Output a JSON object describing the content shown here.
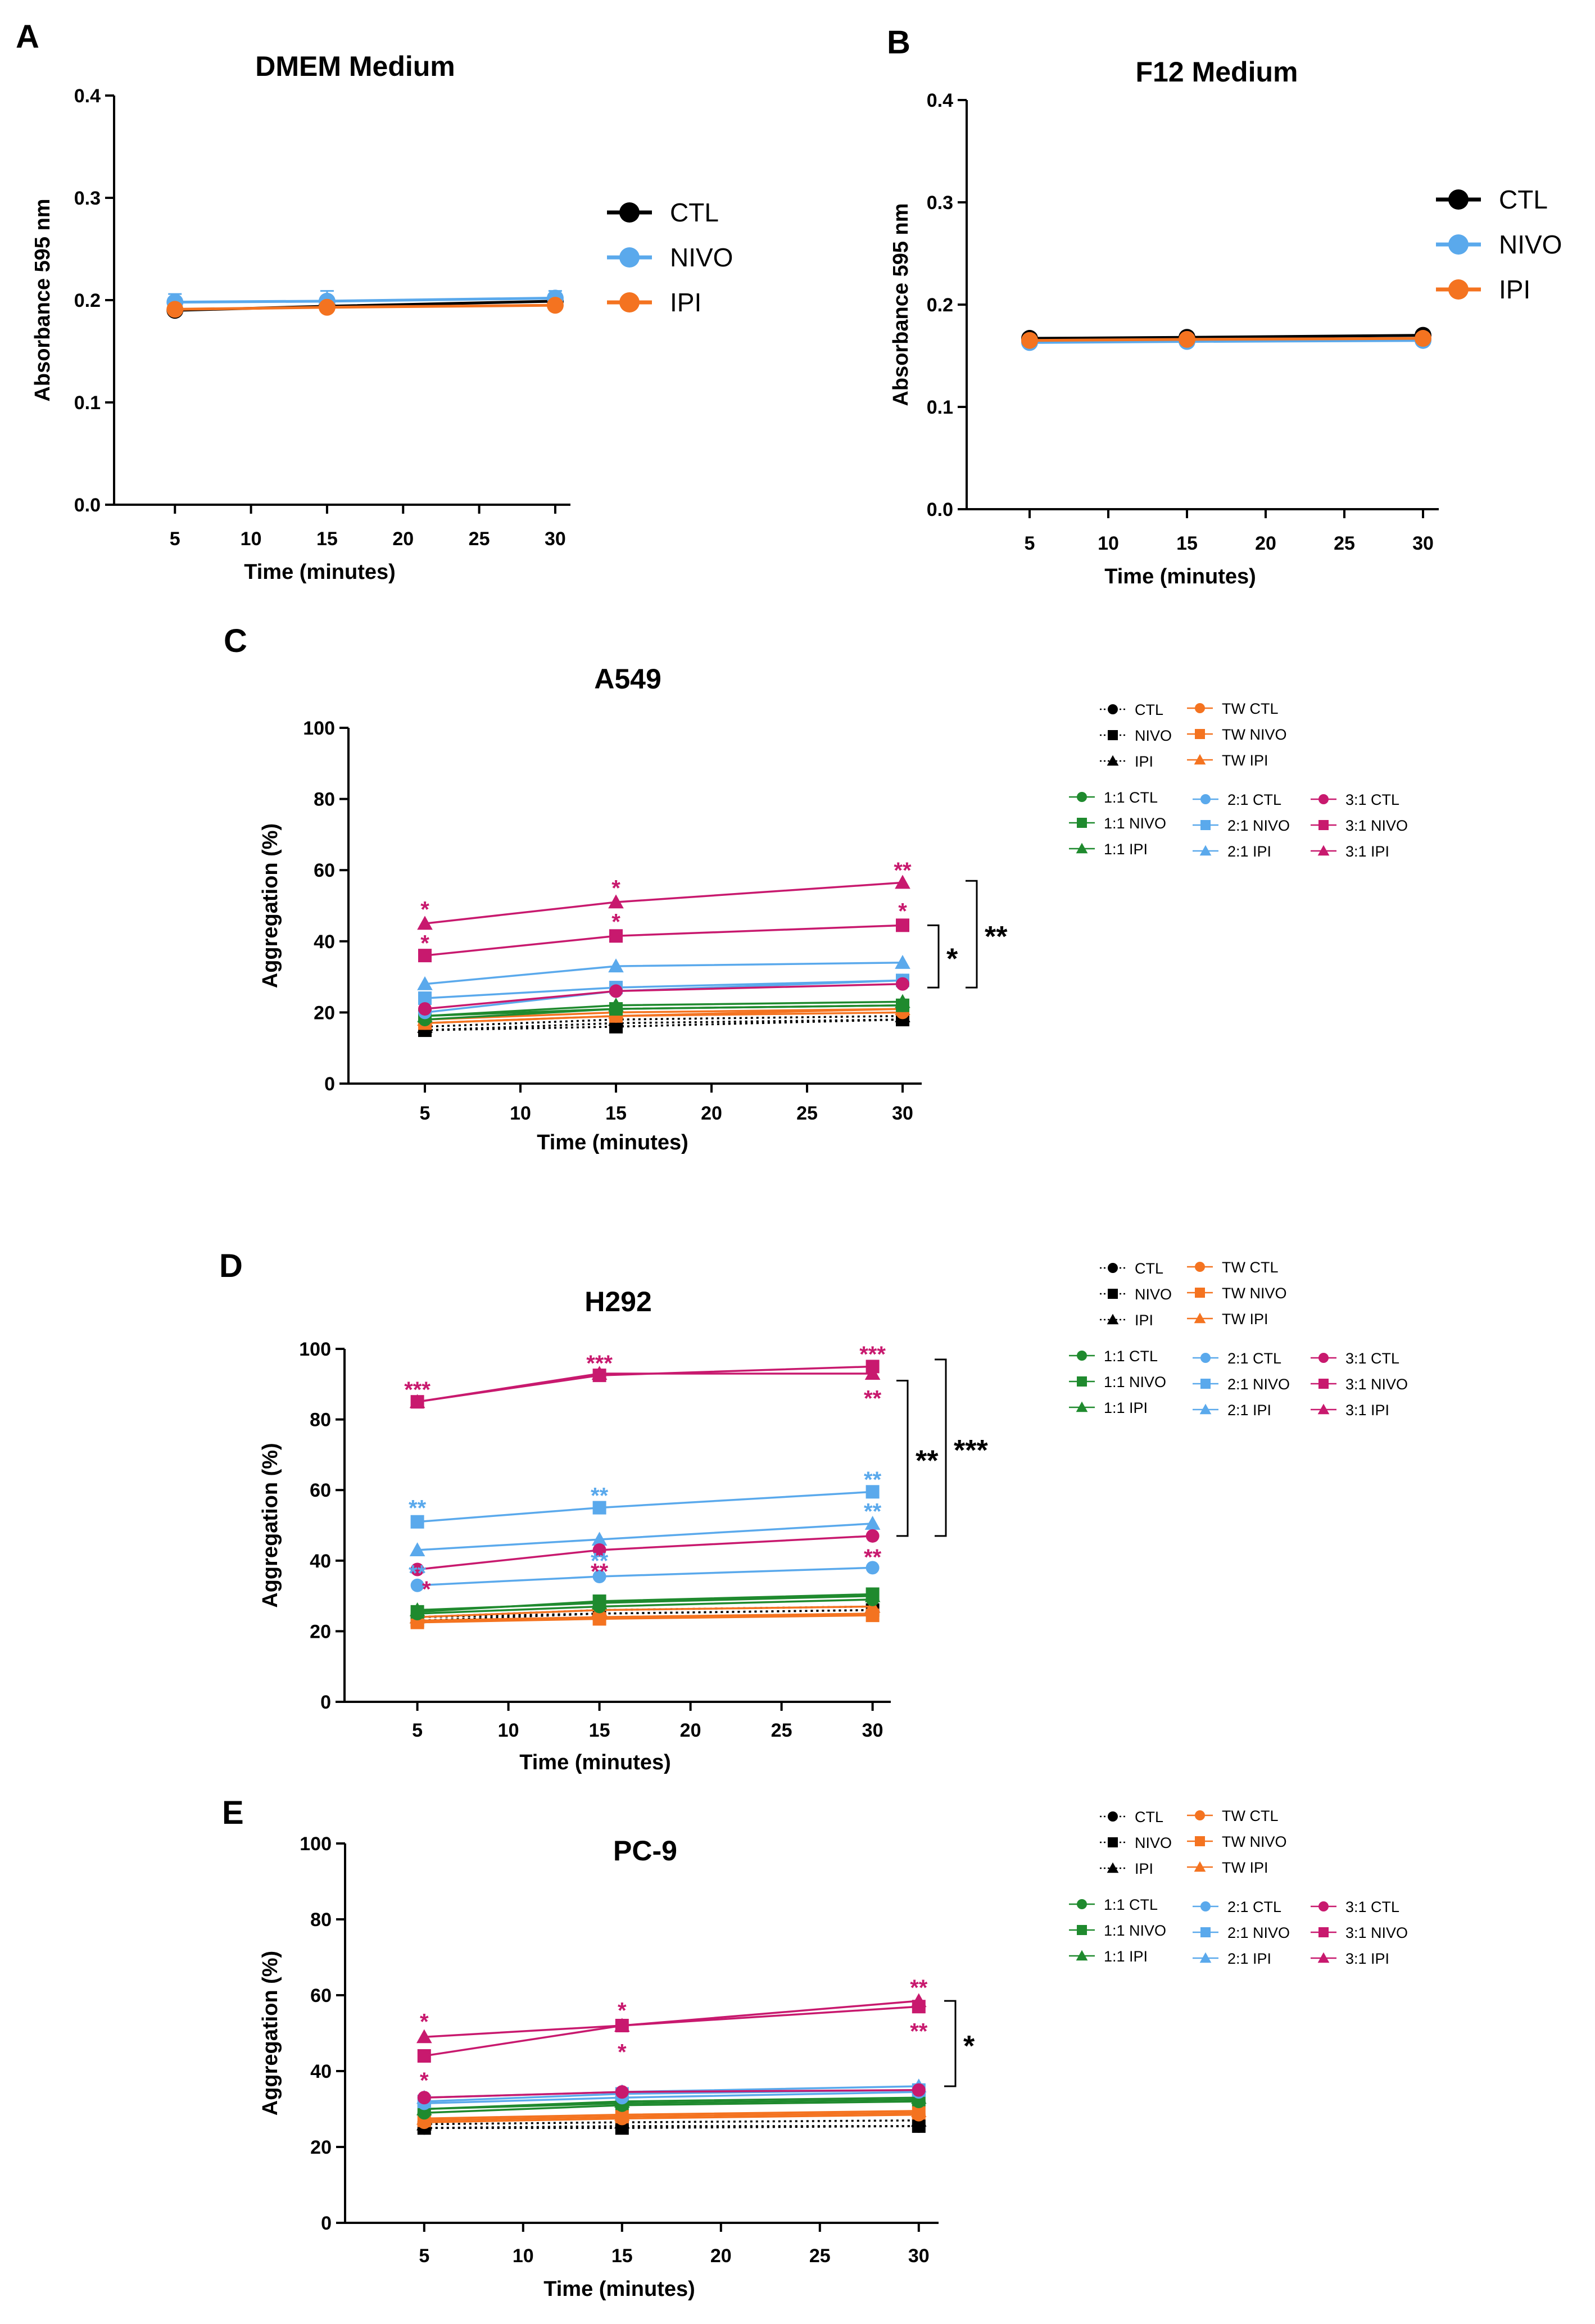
{
  "chart_data": [
    {
      "panel": "A",
      "type": "line",
      "title": "DMEM Medium",
      "xlabel": "Time (minutes)",
      "ylabel": "Absorbance 595 nm",
      "xlim": [
        1,
        31
      ],
      "ylim": [
        0,
        0.4
      ],
      "xticks": [
        "5",
        "10",
        "15",
        "20",
        "25",
        "30"
      ],
      "yticks": [
        "0.0",
        "0.1",
        "0.2",
        "0.3",
        "0.4"
      ],
      "x": [
        5,
        15,
        30
      ],
      "series": [
        {
          "name": "CTL",
          "color": "#000000",
          "marker": "circle",
          "values": [
            0.19,
            0.194,
            0.199
          ],
          "err": [
            0.007,
            0.006,
            0.006
          ]
        },
        {
          "name": "NIVO",
          "color": "#5aa9ec",
          "marker": "circle",
          "values": [
            0.198,
            0.199,
            0.202
          ],
          "err": [
            0.008,
            0.01,
            0.007
          ]
        },
        {
          "name": "IPI",
          "color": "#f47320",
          "marker": "circle",
          "values": [
            0.191,
            0.193,
            0.195
          ],
          "err": [
            0.004,
            0.004,
            0.004
          ]
        }
      ]
    },
    {
      "panel": "B",
      "type": "line",
      "title": "F12 Medium",
      "xlabel": "Time (minutes)",
      "ylabel": "Absorbance 595 nm",
      "xlim": [
        1,
        31
      ],
      "ylim": [
        0,
        0.4
      ],
      "xticks": [
        "5",
        "10",
        "15",
        "20",
        "25",
        "30"
      ],
      "yticks": [
        "0.0",
        "0.1",
        "0.2",
        "0.3",
        "0.4"
      ],
      "x": [
        5,
        15,
        30
      ],
      "series": [
        {
          "name": "CTL",
          "color": "#000000",
          "marker": "circle",
          "values": [
            0.167,
            0.168,
            0.17
          ],
          "err": [
            0.002,
            0.002,
            0.002
          ]
        },
        {
          "name": "NIVO",
          "color": "#5aa9ec",
          "marker": "circle",
          "values": [
            0.163,
            0.164,
            0.165
          ],
          "err": [
            0.002,
            0.002,
            0.002
          ]
        },
        {
          "name": "IPI",
          "color": "#f47320",
          "marker": "circle",
          "values": [
            0.165,
            0.166,
            0.167
          ],
          "err": [
            0.002,
            0.002,
            0.002
          ]
        }
      ]
    },
    {
      "panel": "C",
      "type": "line",
      "title": "A549",
      "xlabel": "Time (minutes)",
      "ylabel": "Aggregation (%)",
      "xlim": [
        1,
        31
      ],
      "ylim": [
        0,
        100
      ],
      "xticks": [
        "5",
        "10",
        "15",
        "20",
        "25",
        "30"
      ],
      "yticks": [
        "0",
        "20",
        "40",
        "60",
        "80",
        "100"
      ],
      "x": [
        5,
        15,
        30
      ],
      "series": [
        {
          "name": "CTL",
          "color": "#000000",
          "marker": "circle",
          "dash": "dot",
          "values": [
            15,
            17,
            18
          ]
        },
        {
          "name": "NIVO",
          "color": "#000000",
          "marker": "square",
          "dash": "dot",
          "values": [
            15,
            16,
            18
          ]
        },
        {
          "name": "IPI",
          "color": "#000000",
          "marker": "triangle",
          "dash": "dot",
          "values": [
            16,
            18,
            19
          ]
        },
        {
          "name": "TW CTL",
          "color": "#f47320",
          "marker": "circle",
          "values": [
            17,
            19,
            20
          ]
        },
        {
          "name": "TW NIVO",
          "color": "#f47320",
          "marker": "square",
          "values": [
            17,
            19,
            21
          ]
        },
        {
          "name": "TW IPI",
          "color": "#f47320",
          "marker": "triangle",
          "values": [
            18,
            20,
            21
          ]
        },
        {
          "name": "1:1 CTL",
          "color": "#1f8a2e",
          "marker": "circle",
          "values": [
            18,
            21,
            22
          ]
        },
        {
          "name": "1:1 NIVO",
          "color": "#1f8a2e",
          "marker": "square",
          "values": [
            19,
            21,
            22
          ]
        },
        {
          "name": "1:1 IPI",
          "color": "#1f8a2e",
          "marker": "triangle",
          "values": [
            19,
            22,
            23
          ]
        },
        {
          "name": "2:1 CTL",
          "color": "#5aa9ec",
          "marker": "circle",
          "values": [
            20,
            26,
            29
          ]
        },
        {
          "name": "2:1 NIVO",
          "color": "#5aa9ec",
          "marker": "square",
          "values": [
            24,
            27,
            29
          ]
        },
        {
          "name": "2:1 IPI",
          "color": "#5aa9ec",
          "marker": "triangle",
          "values": [
            28,
            33,
            34
          ]
        },
        {
          "name": "3:1 CTL",
          "color": "#c8196e",
          "marker": "circle",
          "values": [
            21,
            26,
            28
          ]
        },
        {
          "name": "3:1 NIVO",
          "color": "#c8196e",
          "marker": "square",
          "values": [
            36,
            41.5,
            44.5
          ]
        },
        {
          "name": "3:1 IPI",
          "color": "#c8196e",
          "marker": "triangle",
          "values": [
            45,
            51,
            56.5
          ]
        }
      ],
      "annotations": [
        {
          "text": "*",
          "x": 5,
          "y": 50,
          "color": "#c8196e"
        },
        {
          "text": "*",
          "x": 5,
          "y": 40.5,
          "color": "#c8196e"
        },
        {
          "text": "*",
          "x": 15,
          "y": 56,
          "color": "#c8196e"
        },
        {
          "text": "*",
          "x": 15,
          "y": 46.5,
          "color": "#c8196e"
        },
        {
          "text": "**",
          "x": 30,
          "y": 61,
          "color": "#c8196e"
        },
        {
          "text": "*",
          "x": 30,
          "y": 49.5,
          "color": "#c8196e"
        }
      ],
      "brackets": [
        {
          "text": "*",
          "y1": 44.5,
          "y2": 27,
          "level": 0
        },
        {
          "text": "**",
          "y1": 57,
          "y2": 27,
          "level": 1
        }
      ]
    },
    {
      "panel": "D",
      "type": "line",
      "title": "H292",
      "xlabel": "Time (minutes)",
      "ylabel": "Aggregation (%)",
      "xlim": [
        1,
        31
      ],
      "ylim": [
        0,
        100
      ],
      "xticks": [
        "5",
        "10",
        "15",
        "20",
        "25",
        "30"
      ],
      "yticks": [
        "0",
        "20",
        "40",
        "60",
        "80",
        "100"
      ],
      "x": [
        5,
        15,
        30
      ],
      "series": [
        {
          "name": "CTL",
          "color": "#000000",
          "marker": "circle",
          "dash": "dot",
          "values": [
            24,
            25,
            26
          ]
        },
        {
          "name": "NIVO",
          "color": "#000000",
          "marker": "square",
          "dash": "dot",
          "values": [
            23,
            25,
            26
          ]
        },
        {
          "name": "IPI",
          "color": "#000000",
          "marker": "triangle",
          "dash": "dot",
          "values": [
            24,
            26,
            27
          ]
        },
        {
          "name": "TW CTL",
          "color": "#f47320",
          "marker": "circle",
          "values": [
            23,
            24,
            25
          ]
        },
        {
          "name": "TW NIVO",
          "color": "#f47320",
          "marker": "square",
          "values": [
            22.5,
            23.5,
            24.5
          ]
        },
        {
          "name": "TW IPI",
          "color": "#f47320",
          "marker": "triangle",
          "values": [
            24,
            26,
            27
          ]
        },
        {
          "name": "1:1 CTL",
          "color": "#1f8a2e",
          "marker": "circle",
          "values": [
            25,
            27,
            29
          ]
        },
        {
          "name": "1:1 NIVO",
          "color": "#1f8a2e",
          "marker": "square",
          "values": [
            25.5,
            28.5,
            30.5
          ]
        },
        {
          "name": "1:1 IPI",
          "color": "#1f8a2e",
          "marker": "triangle",
          "values": [
            26,
            28,
            30
          ]
        },
        {
          "name": "2:1 CTL",
          "color": "#5aa9ec",
          "marker": "circle",
          "values": [
            33,
            35.5,
            38
          ]
        },
        {
          "name": "2:1 NIVO",
          "color": "#5aa9ec",
          "marker": "square",
          "values": [
            51,
            55,
            59.5
          ]
        },
        {
          "name": "2:1 IPI",
          "color": "#5aa9ec",
          "marker": "triangle",
          "values": [
            43,
            46,
            50.5
          ]
        },
        {
          "name": "3:1 CTL",
          "color": "#c8196e",
          "marker": "circle",
          "values": [
            37.5,
            43,
            47
          ]
        },
        {
          "name": "3:1 NIVO",
          "color": "#c8196e",
          "marker": "square",
          "values": [
            85,
            92.5,
            95
          ]
        },
        {
          "name": "3:1 IPI",
          "color": "#c8196e",
          "marker": "triangle",
          "values": [
            85,
            93,
            93
          ]
        }
      ],
      "annotations": [
        {
          "text": "***",
          "x": 5,
          "y": 89.5,
          "color": "#c8196e"
        },
        {
          "text": "***",
          "x": 15,
          "y": 97,
          "color": "#c8196e"
        },
        {
          "text": "***",
          "x": 30,
          "y": 99.5,
          "color": "#c8196e"
        },
        {
          "text": "**",
          "x": 30,
          "y": 87,
          "color": "#c8196e"
        },
        {
          "text": "**",
          "x": 5,
          "y": 56,
          "color": "#5aa9ec"
        },
        {
          "text": "**",
          "x": 15,
          "y": 59.5,
          "color": "#5aa9ec"
        },
        {
          "text": "**",
          "x": 30,
          "y": 64,
          "color": "#5aa9ec"
        },
        {
          "text": "**",
          "x": 5,
          "y": 37.5,
          "color": "#5aa9ec"
        },
        {
          "text": "**",
          "x": 15,
          "y": 41,
          "color": "#5aa9ec"
        },
        {
          "text": "**",
          "x": 30,
          "y": 55,
          "color": "#5aa9ec"
        },
        {
          "text": "*",
          "x": 5.5,
          "y": 33,
          "color": "#c8196e"
        },
        {
          "text": "**",
          "x": 15,
          "y": 38,
          "color": "#c8196e"
        },
        {
          "text": "**",
          "x": 30,
          "y": 42,
          "color": "#c8196e"
        }
      ],
      "brackets": [
        {
          "text": "**",
          "y1": 91,
          "y2": 47,
          "level": 0
        },
        {
          "text": "***",
          "y1": 97,
          "y2": 47,
          "level": 1
        }
      ]
    },
    {
      "panel": "E",
      "type": "line",
      "title": "PC-9",
      "xlabel": "Time (minutes)",
      "ylabel": "Aggregation (%)",
      "xlim": [
        1,
        31
      ],
      "ylim": [
        0,
        100
      ],
      "xticks": [
        "5",
        "10",
        "15",
        "20",
        "25",
        "30"
      ],
      "yticks": [
        "0",
        "20",
        "40",
        "60",
        "80",
        "100"
      ],
      "x": [
        5,
        15,
        30
      ],
      "series": [
        {
          "name": "CTL",
          "color": "#000000",
          "marker": "circle",
          "dash": "dot",
          "values": [
            25,
            25.5,
            25.5
          ]
        },
        {
          "name": "NIVO",
          "color": "#000000",
          "marker": "square",
          "dash": "dot",
          "values": [
            25,
            25,
            25.5
          ]
        },
        {
          "name": "IPI",
          "color": "#000000",
          "marker": "triangle",
          "dash": "dot",
          "values": [
            26,
            26.5,
            27
          ]
        },
        {
          "name": "TW CTL",
          "color": "#f47320",
          "marker": "circle",
          "values": [
            26.5,
            27.5,
            28.5
          ]
        },
        {
          "name": "TW NIVO",
          "color": "#f47320",
          "marker": "square",
          "values": [
            27,
            28,
            29
          ]
        },
        {
          "name": "TW IPI",
          "color": "#f47320",
          "marker": "triangle",
          "values": [
            27.5,
            28.5,
            29.5
          ]
        },
        {
          "name": "1:1 CTL",
          "color": "#1f8a2e",
          "marker": "circle",
          "values": [
            29,
            31,
            32
          ]
        },
        {
          "name": "1:1 NIVO",
          "color": "#1f8a2e",
          "marker": "square",
          "values": [
            30,
            31.5,
            32.5
          ]
        },
        {
          "name": "1:1 IPI",
          "color": "#1f8a2e",
          "marker": "triangle",
          "values": [
            30,
            32,
            33
          ]
        },
        {
          "name": "2:1 CTL",
          "color": "#5aa9ec",
          "marker": "circle",
          "values": [
            31.5,
            33,
            34.5
          ]
        },
        {
          "name": "2:1 NIVO",
          "color": "#5aa9ec",
          "marker": "square",
          "values": [
            32,
            34,
            35
          ]
        },
        {
          "name": "2:1 IPI",
          "color": "#5aa9ec",
          "marker": "triangle",
          "values": [
            33,
            34.5,
            36
          ]
        },
        {
          "name": "3:1 CTL",
          "color": "#c8196e",
          "marker": "circle",
          "values": [
            33,
            34.5,
            35
          ]
        },
        {
          "name": "3:1 NIVO",
          "color": "#c8196e",
          "marker": "square",
          "values": [
            44,
            52,
            57
          ]
        },
        {
          "name": "3:1 IPI",
          "color": "#c8196e",
          "marker": "triangle",
          "values": [
            49,
            52,
            58.5
          ]
        }
      ],
      "annotations": [
        {
          "text": "*",
          "x": 5,
          "y": 54,
          "color": "#c8196e"
        },
        {
          "text": "*",
          "x": 5,
          "y": 38.5,
          "color": "#c8196e"
        },
        {
          "text": "*",
          "x": 15,
          "y": 57,
          "color": "#c8196e"
        },
        {
          "text": "*",
          "x": 15,
          "y": 46,
          "color": "#c8196e"
        },
        {
          "text": "**",
          "x": 30,
          "y": 63,
          "color": "#c8196e"
        },
        {
          "text": "**",
          "x": 30,
          "y": 51.5,
          "color": "#c8196e"
        }
      ],
      "brackets": [
        {
          "text": "*",
          "y1": 58.5,
          "y2": 36,
          "level": 0
        }
      ]
    }
  ]
}
